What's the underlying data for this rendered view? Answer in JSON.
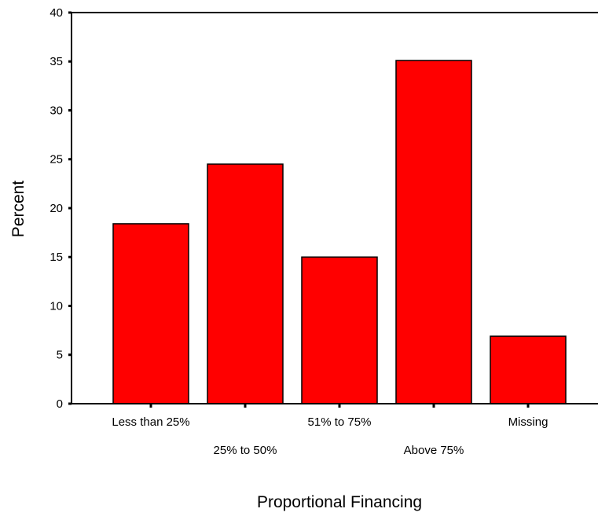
{
  "chart_data": {
    "type": "bar",
    "categories": [
      "Less than 25%",
      "25% to 50%",
      "51% to 75%",
      "Above 75%",
      "Missing"
    ],
    "values": [
      18.4,
      24.5,
      15.0,
      35.1,
      6.9
    ],
    "xlabel": "Proportional Financing",
    "ylabel": "Percent",
    "ylim": [
      0,
      40
    ],
    "yticks": [
      0,
      5,
      10,
      15,
      20,
      25,
      30,
      35,
      40
    ],
    "grid": false,
    "bar_color": "#ff0000",
    "edge_color": "#000000"
  }
}
